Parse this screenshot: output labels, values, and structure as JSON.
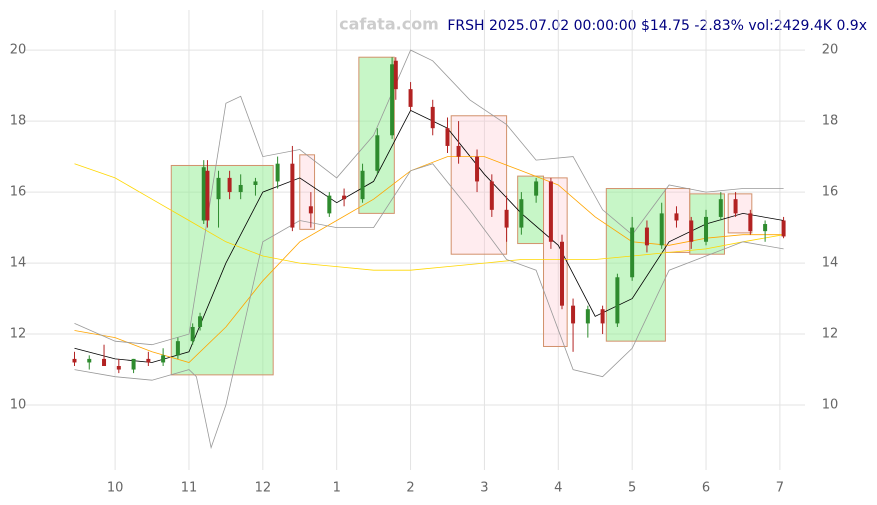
{
  "chart_data": {
    "type": "candlestick",
    "title": "FRSH 2025.07.02 00:00:00 $14.75 -2.83% vol:2429.4K 0.9x",
    "watermark": "cafata.com",
    "xlim": [
      8.78,
      19.34
    ],
    "ylim": [
      8.17,
      21.13
    ],
    "xticks": [
      10,
      11,
      12,
      {
        "value": 13,
        "label": "1"
      },
      {
        "value": 14,
        "label": "2"
      },
      {
        "value": 15,
        "label": "3"
      },
      {
        "value": 16,
        "label": "4"
      },
      {
        "value": 17,
        "label": "5"
      },
      {
        "value": 18,
        "label": "6"
      },
      {
        "value": 19,
        "label": "7"
      }
    ],
    "yticks": [
      10,
      12,
      14,
      16,
      18,
      20
    ],
    "grid": true,
    "up_color": "#2e8b2e",
    "down_color": "#b22222",
    "x": [
      9.45,
      9.65,
      9.85,
      10.05,
      10.25,
      10.45,
      10.65,
      10.85,
      11.05,
      11.15,
      11.2,
      11.25,
      11.4,
      11.55,
      11.7,
      11.9,
      12.2,
      12.4,
      12.65,
      12.9,
      13.1,
      13.35,
      13.55,
      13.75,
      13.8,
      14.0,
      14.3,
      14.5,
      14.65,
      14.9,
      15.1,
      15.3,
      15.5,
      15.7,
      15.9,
      16.05,
      16.2,
      16.4,
      16.6,
      16.8,
      17.0,
      17.2,
      17.4,
      17.6,
      17.8,
      18.0,
      18.2,
      18.4,
      18.6,
      18.8,
      19.05
    ],
    "open": [
      11.3,
      11.2,
      11.3,
      11.1,
      11.0,
      11.3,
      11.2,
      11.4,
      11.8,
      12.2,
      15.2,
      16.6,
      15.8,
      16.4,
      16.0,
      16.2,
      16.3,
      16.8,
      15.6,
      15.4,
      15.9,
      15.8,
      16.6,
      17.6,
      19.7,
      18.9,
      18.4,
      17.8,
      17.3,
      17.0,
      16.3,
      15.5,
      15.0,
      15.9,
      16.3,
      14.6,
      12.8,
      12.3,
      12.7,
      12.3,
      13.6,
      15.0,
      14.5,
      15.4,
      15.2,
      14.6,
      15.3,
      15.8,
      15.4,
      14.9,
      15.2
    ],
    "high": [
      11.5,
      11.4,
      11.7,
      11.3,
      11.3,
      11.5,
      11.6,
      11.9,
      12.3,
      12.6,
      16.9,
      16.9,
      16.6,
      16.6,
      16.5,
      16.4,
      17.0,
      17.3,
      16.0,
      16.0,
      16.1,
      16.8,
      17.8,
      19.8,
      19.8,
      19.1,
      18.6,
      18.1,
      18.0,
      17.2,
      16.5,
      15.9,
      16.0,
      16.4,
      16.4,
      14.8,
      13.0,
      12.8,
      12.8,
      13.7,
      15.3,
      15.2,
      15.7,
      15.6,
      15.3,
      15.5,
      16.0,
      16.0,
      15.5,
      15.2,
      15.3
    ],
    "low": [
      11.1,
      11.0,
      11.1,
      10.9,
      10.9,
      11.1,
      11.1,
      11.3,
      11.7,
      12.1,
      15.1,
      15.0,
      15.0,
      15.8,
      15.8,
      15.9,
      16.1,
      14.9,
      15.0,
      15.3,
      15.6,
      15.7,
      16.5,
      17.5,
      18.6,
      18.3,
      17.6,
      17.1,
      16.8,
      16.0,
      15.3,
      14.6,
      14.8,
      15.7,
      14.4,
      12.7,
      11.5,
      11.9,
      12.0,
      12.2,
      13.5,
      14.3,
      14.4,
      15.0,
      14.4,
      14.5,
      15.2,
      15.3,
      14.8,
      14.6,
      14.7
    ],
    "close": [
      11.2,
      11.3,
      11.1,
      11.0,
      11.3,
      11.2,
      11.4,
      11.8,
      12.2,
      12.5,
      16.7,
      15.2,
      16.4,
      16.0,
      16.2,
      16.3,
      16.8,
      15.0,
      15.4,
      15.9,
      15.8,
      16.6,
      17.6,
      19.6,
      18.9,
      18.4,
      17.8,
      17.3,
      17.0,
      16.3,
      15.5,
      15.0,
      15.8,
      16.3,
      14.6,
      12.8,
      12.3,
      12.7,
      12.3,
      13.6,
      15.0,
      14.5,
      15.4,
      15.2,
      14.6,
      15.3,
      15.8,
      15.4,
      14.9,
      15.1,
      14.75
    ],
    "lines": [
      {
        "color": "#000000",
        "x": [
          9.45,
          10.0,
          10.5,
          11.0,
          11.5,
          12.0,
          12.5,
          13.0,
          13.5,
          14.0,
          14.5,
          15.0,
          15.5,
          16.0,
          16.5,
          17.0,
          17.5,
          18.0,
          18.5,
          19.05
        ],
        "values": [
          11.6,
          11.3,
          11.2,
          11.5,
          14.0,
          16.0,
          16.4,
          15.7,
          16.3,
          18.3,
          17.8,
          16.5,
          15.4,
          14.5,
          12.5,
          13.0,
          14.6,
          15.1,
          15.4,
          15.2
        ]
      },
      {
        "color": "#ffa500",
        "x": [
          9.45,
          10.0,
          10.5,
          11.0,
          11.5,
          12.0,
          12.5,
          13.0,
          13.5,
          14.0,
          14.5,
          15.0,
          15.5,
          16.0,
          16.5,
          17.0,
          17.5,
          18.0,
          18.5,
          19.05
        ],
        "values": [
          12.1,
          11.9,
          11.5,
          11.2,
          12.2,
          13.5,
          14.6,
          15.2,
          15.8,
          16.6,
          17.0,
          17.0,
          16.6,
          16.2,
          15.3,
          14.6,
          14.5,
          14.7,
          14.8,
          14.8
        ]
      },
      {
        "color": "#ffd700",
        "x": [
          9.45,
          10.0,
          10.5,
          11.0,
          11.5,
          12.0,
          12.5,
          13.0,
          13.5,
          14.0,
          14.5,
          15.0,
          15.5,
          16.0,
          16.5,
          17.0,
          17.5,
          18.0,
          18.5,
          19.05
        ],
        "values": [
          16.8,
          16.4,
          15.8,
          15.2,
          14.6,
          14.2,
          14.0,
          13.9,
          13.8,
          13.8,
          13.9,
          14.0,
          14.1,
          14.1,
          14.1,
          14.2,
          14.3,
          14.4,
          14.6,
          14.8
        ]
      },
      {
        "color": "#999999",
        "x": [
          9.45,
          10.0,
          10.5,
          11.0,
          11.5,
          11.7,
          12.0,
          12.5,
          13.0,
          13.5,
          14.0,
          14.3,
          14.8,
          15.3,
          15.7,
          16.2,
          16.6,
          17.0,
          17.5,
          18.0,
          18.5,
          19.05
        ],
        "values": [
          12.3,
          11.8,
          11.7,
          12.0,
          18.5,
          18.7,
          17.0,
          17.2,
          16.4,
          17.6,
          20.0,
          19.7,
          18.6,
          17.9,
          16.9,
          17.0,
          15.5,
          14.8,
          16.2,
          16.0,
          16.1,
          16.1
        ]
      },
      {
        "color": "#999999",
        "x": [
          9.45,
          10.0,
          10.5,
          11.0,
          11.1,
          11.3,
          11.5,
          12.0,
          12.5,
          13.0,
          13.5,
          14.0,
          14.3,
          14.8,
          15.3,
          15.7,
          16.2,
          16.6,
          17.0,
          17.5,
          18.0,
          18.5,
          19.05
        ],
        "values": [
          11.0,
          10.8,
          10.7,
          11.0,
          10.8,
          8.8,
          10.0,
          14.6,
          15.2,
          15.0,
          15.0,
          16.6,
          16.8,
          15.5,
          14.1,
          13.8,
          11.0,
          10.8,
          11.6,
          13.8,
          14.2,
          14.6,
          14.4
        ]
      }
    ],
    "boxes": [
      {
        "color": "#90ee90",
        "x": [
          10.76,
          12.14
        ],
        "y": [
          10.85,
          16.75
        ]
      },
      {
        "color": "#ffc0cb",
        "x": [
          12.5,
          12.7
        ],
        "y": [
          14.95,
          17.05
        ]
      },
      {
        "color": "#90ee90",
        "x": [
          13.3,
          13.78
        ],
        "y": [
          15.4,
          19.8
        ]
      },
      {
        "color": "#ffc0cb",
        "x": [
          14.55,
          15.3
        ],
        "y": [
          14.25,
          18.15
        ]
      },
      {
        "color": "#90ee90",
        "x": [
          15.45,
          15.8
        ],
        "y": [
          14.55,
          16.45
        ]
      },
      {
        "color": "#ffc0cb",
        "x": [
          15.8,
          16.12
        ],
        "y": [
          11.65,
          16.4
        ]
      },
      {
        "color": "#90ee90",
        "x": [
          16.65,
          17.45
        ],
        "y": [
          11.8,
          16.1
        ]
      },
      {
        "color": "#ffc0cb",
        "x": [
          17.45,
          17.78
        ],
        "y": [
          14.3,
          16.1
        ]
      },
      {
        "color": "#90ee90",
        "x": [
          17.78,
          18.25
        ],
        "y": [
          14.25,
          15.95
        ]
      },
      {
        "color": "#ffc0cb",
        "x": [
          18.3,
          18.62
        ],
        "y": [
          14.85,
          15.95
        ]
      }
    ]
  }
}
